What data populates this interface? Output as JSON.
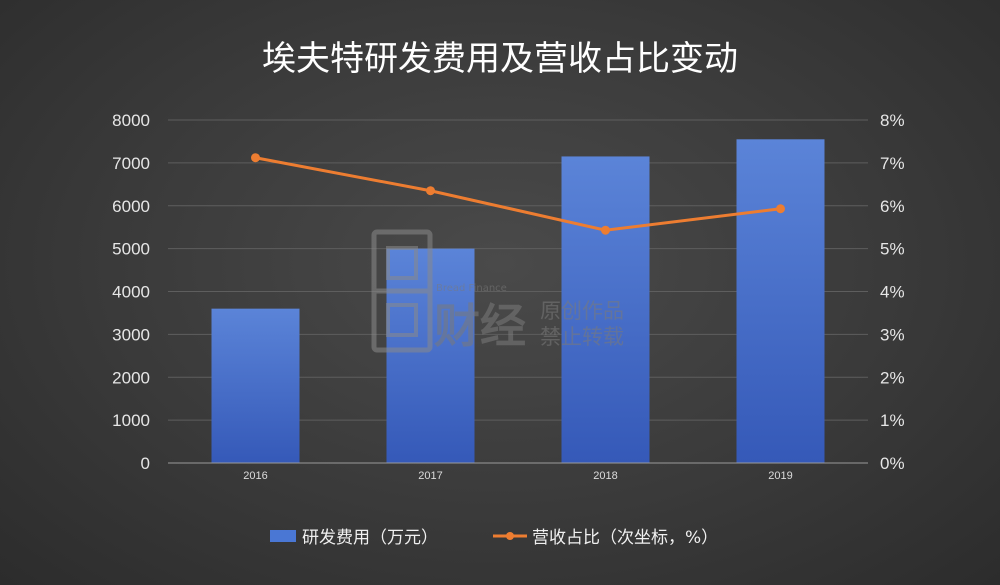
{
  "chart_data": {
    "type": "bar",
    "title": "埃夫特研发费用及营收占比变动",
    "categories": [
      "2016",
      "2017",
      "2018",
      "2019"
    ],
    "series": [
      {
        "name": "研发费用（万元）",
        "kind": "bar",
        "axis": "left",
        "color": "#4a77d4",
        "values": [
          3600,
          5000,
          7150,
          7550
        ]
      },
      {
        "name": "营收占比（次坐标，%）",
        "kind": "line",
        "axis": "right",
        "color": "#ed7d31",
        "values": [
          7.12,
          6.35,
          5.43,
          5.93
        ]
      }
    ],
    "ylim": [
      0,
      8000
    ],
    "yticks": [
      "0",
      "1000",
      "2000",
      "3000",
      "4000",
      "5000",
      "6000",
      "7000",
      "8000"
    ],
    "y2lim": [
      0,
      8
    ],
    "y2ticks": [
      "0%",
      "1%",
      "2%",
      "3%",
      "4%",
      "5%",
      "6%",
      "7%",
      "8%"
    ],
    "grid": true,
    "legend_position": "bottom"
  },
  "watermark": {
    "brand_en": "Bread Finance",
    "brand_cn": "财经",
    "line1": "原创作品",
    "line2": "禁止转载"
  }
}
